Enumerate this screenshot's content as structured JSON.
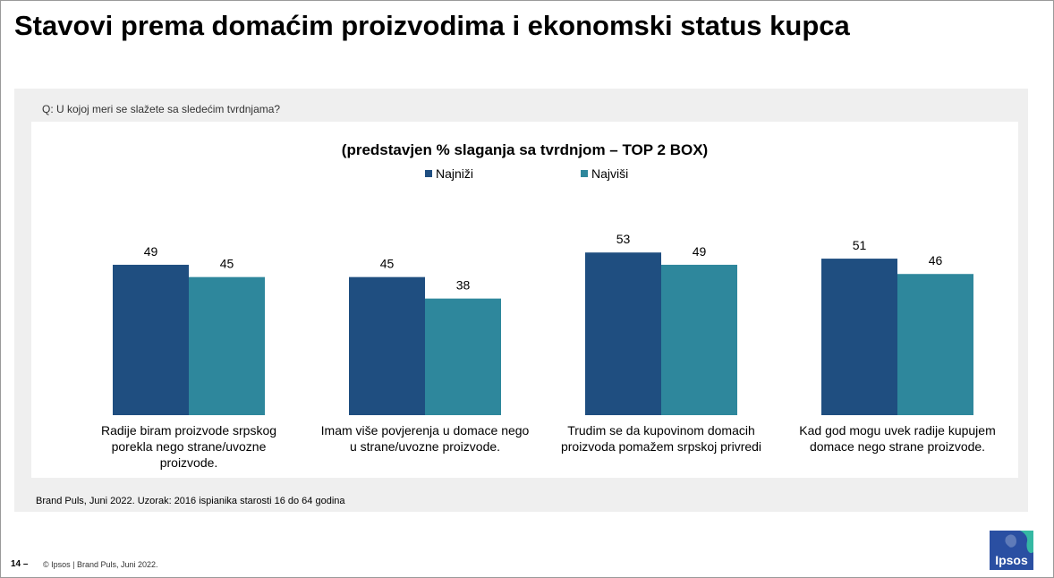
{
  "slide": {
    "title": "Stavovi prema domaćim proizvodima i ekonomski status kupca",
    "question": "Q: U kojoj meri se slažete sa sledećim tvrdnjama?",
    "source": "Brand Puls, Juni 2022. Uzorak: 2016 ispianika starosti 16 do 64 godina",
    "page_number": "14 –",
    "copyright": "© Ipsos | Brand Puls, Juni 2022.",
    "logo_text": "Ipsos"
  },
  "colors": {
    "series_low": "#1f4e80",
    "series_high": "#2e879c"
  },
  "chart_data": {
    "type": "bar",
    "title": "(predstavjen % slaganja sa tvrdnjom – TOP 2 BOX)",
    "legend_position": "top-center",
    "categories": [
      "Radije biram proizvode srpskog porekla nego strane/uvozne proizvode.",
      "Imam više povjerenja u domace nego u strane/uvozne proizvode.",
      "Trudim se da kupovinom domacih proizvoda pomažem srpskoj privredi",
      "Kad god mogu uvek radije kupujem domace nego strane proizvode."
    ],
    "category_lines": [
      [
        "Radije biram proizvode srpskog",
        "porekla nego strane/uvozne",
        "proizvode."
      ],
      [
        "Imam više povjerenja u domace nego",
        "u strane/uvozne proizvode."
      ],
      [
        "Trudim se da kupovinom domacih",
        "proizvoda pomažem srpskoj privredi"
      ],
      [
        "Kad god mogu uvek radije kupujem",
        "domace nego strane proizvode."
      ]
    ],
    "series": [
      {
        "name": "Najniži",
        "color": "#1f4e80",
        "values": [
          49,
          45,
          53,
          51
        ]
      },
      {
        "name": "Najviši",
        "color": "#2e879c",
        "values": [
          45,
          38,
          49,
          46
        ]
      }
    ],
    "ylim": [
      0,
      60
    ],
    "grid": false
  }
}
